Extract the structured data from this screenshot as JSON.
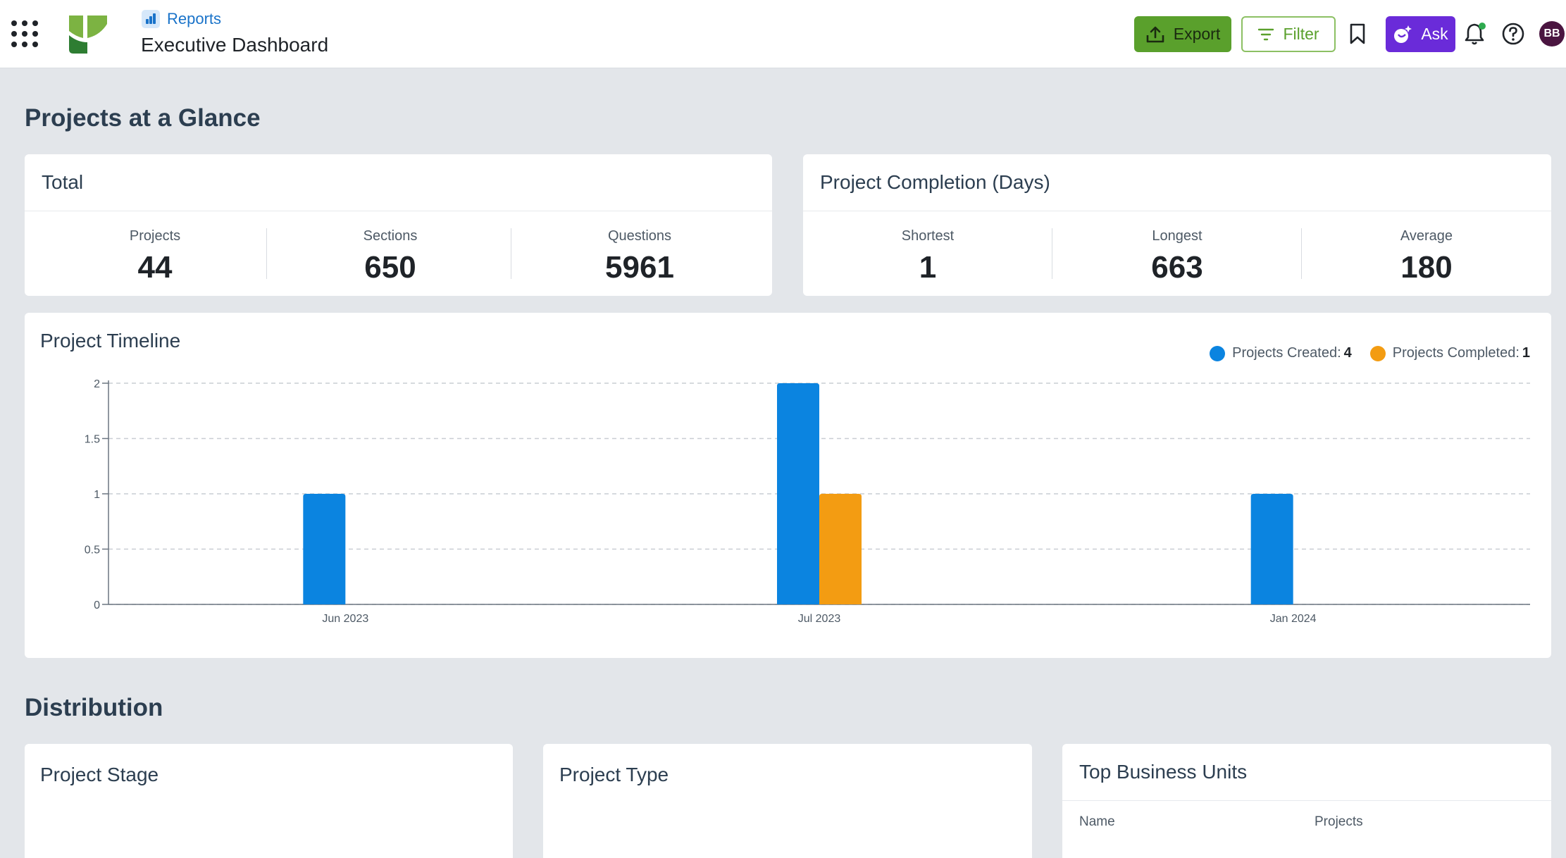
{
  "header": {
    "breadcrumb": "Reports",
    "title": "Executive Dashboard",
    "export_label": "Export",
    "filter_label": "Filter",
    "ask_label": "Ask",
    "avatar_initials": "BB",
    "colors": {
      "export": "#5aa02c",
      "ask": "#6a2bd9",
      "breadcrumb": "#1a73c9"
    }
  },
  "glance": {
    "section_title": "Projects at a Glance",
    "total": {
      "title": "Total",
      "stats": [
        {
          "label": "Projects",
          "value": "44"
        },
        {
          "label": "Sections",
          "value": "650"
        },
        {
          "label": "Questions",
          "value": "5961"
        }
      ]
    },
    "completion": {
      "title": "Project Completion (Days)",
      "stats": [
        {
          "label": "Shortest",
          "value": "1"
        },
        {
          "label": "Longest",
          "value": "663"
        },
        {
          "label": "Average",
          "value": "180"
        }
      ]
    }
  },
  "timeline": {
    "title": "Project Timeline",
    "legend": [
      {
        "label": "Projects Created:",
        "value": "4",
        "color": "#0b84e0"
      },
      {
        "label": "Projects Completed:",
        "value": "1",
        "color": "#f39c12"
      }
    ]
  },
  "chart_data": {
    "type": "bar",
    "categories": [
      "Jun 2023",
      "Jul 2023",
      "Jan 2024"
    ],
    "series": [
      {
        "name": "Projects Created",
        "values": [
          1,
          2,
          1
        ],
        "color": "#0b84e0"
      },
      {
        "name": "Projects Completed",
        "values": [
          0,
          1,
          0
        ],
        "color": "#f39c12"
      }
    ],
    "yticks": [
      "0",
      "0.5",
      "1",
      "1.5",
      "2"
    ],
    "ylim": [
      0,
      2
    ],
    "grid": true,
    "legend": "top-right"
  },
  "distribution": {
    "section_title": "Distribution",
    "stage_title": "Project Stage",
    "type_title": "Project Type",
    "units_title": "Top Business Units",
    "units_columns": [
      "Name",
      "Projects"
    ]
  }
}
